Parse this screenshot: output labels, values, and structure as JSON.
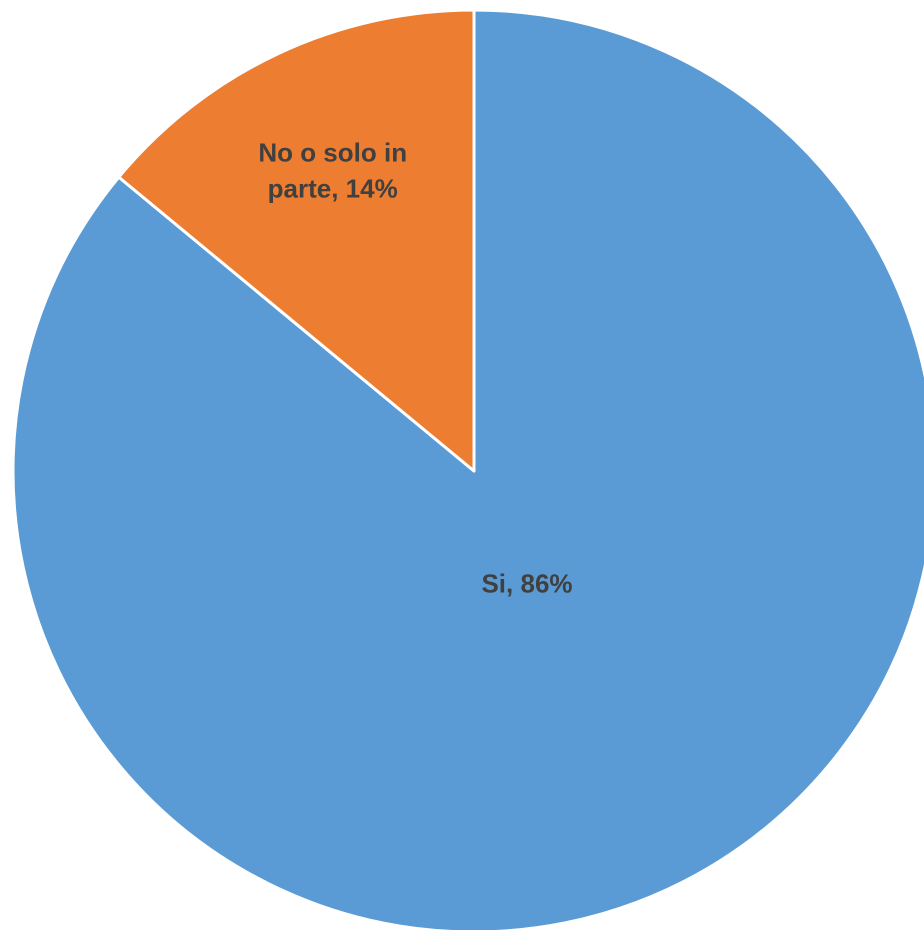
{
  "chart_data": {
    "type": "pie",
    "start_angle_deg": 0,
    "direction": "clockwise",
    "slices": [
      {
        "label_lines": [
          "Si, 86%"
        ],
        "category": "Si",
        "value": 86,
        "color": "#5B9BD5"
      },
      {
        "label_lines": [
          "No o solo in",
          "parte, 14%"
        ],
        "category": "No o solo in parte",
        "value": 14,
        "color": "#ED7D31"
      }
    ],
    "separator_color": "#ffffff",
    "label_color": "#404040",
    "legend": "none"
  }
}
